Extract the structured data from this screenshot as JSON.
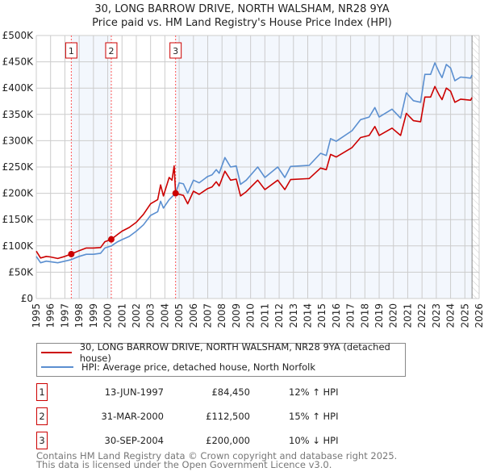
{
  "chart_data": {
    "type": "line",
    "title": "30, LONG BARROW DRIVE, NORTH WALSHAM, NR28 9YA",
    "subtitle": "Price paid vs. HM Land Registry's House Price Index (HPI)",
    "xlabel": "",
    "ylabel": "",
    "xlim": [
      1995,
      2026
    ],
    "ylim": [
      0,
      500000
    ],
    "grid": true,
    "x_ticks": [
      "1995",
      "1996",
      "1997",
      "1998",
      "1999",
      "2000",
      "2001",
      "2002",
      "2003",
      "2004",
      "2005",
      "2006",
      "2007",
      "2008",
      "2009",
      "2010",
      "2011",
      "2012",
      "2013",
      "2014",
      "2015",
      "2016",
      "2017",
      "2018",
      "2019",
      "2020",
      "2021",
      "2022",
      "2023",
      "2024",
      "2025",
      "2026"
    ],
    "y_ticks": [
      {
        "value": 0,
        "label": "£0"
      },
      {
        "value": 50000,
        "label": "£50K"
      },
      {
        "value": 100000,
        "label": "£100K"
      },
      {
        "value": 150000,
        "label": "£150K"
      },
      {
        "value": 200000,
        "label": "£200K"
      },
      {
        "value": 250000,
        "label": "£250K"
      },
      {
        "value": 300000,
        "label": "£300K"
      },
      {
        "value": 350000,
        "label": "£350K"
      },
      {
        "value": 400000,
        "label": "£400K"
      },
      {
        "value": 450000,
        "label": "£450K"
      },
      {
        "value": 500000,
        "label": "£500K"
      }
    ],
    "data_end": 2025.5,
    "legend_position": "below",
    "series": [
      {
        "name": "30, LONG BARROW DRIVE, NORTH WALSHAM, NR28 9YA (detached house)",
        "color": "#cc0000",
        "x": [
          1995.0,
          1995.3,
          1995.7,
          1996.0,
          1996.5,
          1997.0,
          1997.45,
          1998.0,
          1998.5,
          1999.0,
          1999.5,
          1999.8,
          2000.25,
          2000.7,
          2001.0,
          2001.5,
          2002.0,
          2002.5,
          2003.0,
          2003.5,
          2003.7,
          2003.9,
          2004.3,
          2004.5,
          2004.65,
          2004.75,
          2005.0,
          2005.3,
          2005.6,
          2006.0,
          2006.4,
          2007.0,
          2007.3,
          2007.6,
          2007.8,
          2008.2,
          2008.6,
          2009.0,
          2009.3,
          2009.7,
          2010.5,
          2011.0,
          2011.9,
          2012.4,
          2012.8,
          2014.1,
          2014.9,
          2015.3,
          2015.6,
          2016.0,
          2017.1,
          2017.7,
          2018.3,
          2018.7,
          2019.0,
          2019.9,
          2020.5,
          2020.9,
          2021.4,
          2021.9,
          2022.2,
          2022.6,
          2022.9,
          2023.2,
          2023.4,
          2023.7,
          2024.0,
          2024.3,
          2024.7,
          2025.4,
          2025.5
        ],
        "values": [
          90000,
          77000,
          80000,
          79000,
          76000,
          80000,
          84450,
          91000,
          96000,
          96000,
          97000,
          108000,
          112500,
          122000,
          128000,
          135000,
          145000,
          160000,
          180000,
          188000,
          216000,
          195000,
          230000,
          225000,
          252000,
          200000,
          198000,
          196000,
          180000,
          204000,
          198000,
          209000,
          212000,
          222000,
          214000,
          242000,
          225000,
          227000,
          195000,
          203000,
          225000,
          207000,
          225000,
          207000,
          226000,
          228000,
          248000,
          245000,
          274000,
          269000,
          287000,
          306000,
          310000,
          327000,
          310000,
          324000,
          310000,
          352000,
          338000,
          336000,
          383000,
          383000,
          403000,
          387000,
          378000,
          400000,
          394000,
          373000,
          379000,
          377000,
          382000
        ]
      },
      {
        "name": "HPI: Average price, detached house, North Norfolk",
        "color": "#5b8fd0",
        "x": [
          1995.0,
          1995.3,
          1995.7,
          1996.0,
          1996.5,
          1997.0,
          1997.45,
          1998.0,
          1998.5,
          1999.0,
          1999.5,
          1999.8,
          2000.25,
          2000.7,
          2001.0,
          2001.5,
          2002.0,
          2002.5,
          2003.0,
          2003.5,
          2003.7,
          2003.9,
          2004.3,
          2004.75,
          2005.0,
          2005.3,
          2005.6,
          2006.0,
          2006.4,
          2007.0,
          2007.3,
          2007.6,
          2007.8,
          2008.2,
          2008.6,
          2009.0,
          2009.3,
          2009.7,
          2010.5,
          2011.0,
          2011.9,
          2012.4,
          2012.8,
          2014.1,
          2014.9,
          2015.3,
          2015.6,
          2016.0,
          2017.1,
          2017.7,
          2018.3,
          2018.7,
          2019.0,
          2019.9,
          2020.5,
          2020.9,
          2021.4,
          2021.9,
          2022.2,
          2022.6,
          2022.9,
          2023.2,
          2023.4,
          2023.7,
          2024.0,
          2024.3,
          2024.7,
          2025.4,
          2025.5
        ],
        "values": [
          80000,
          68000,
          71000,
          70000,
          68000,
          71000,
          74000,
          80000,
          84000,
          84000,
          86000,
          96000,
          100000,
          108000,
          112000,
          118000,
          128000,
          140000,
          158000,
          165000,
          185000,
          172000,
          188000,
          200000,
          220000,
          218000,
          200000,
          225000,
          220000,
          232000,
          235000,
          245000,
          238000,
          268000,
          250000,
          252000,
          217000,
          225000,
          250000,
          230000,
          250000,
          230000,
          251000,
          253000,
          276000,
          272000,
          304000,
          299000,
          319000,
          340000,
          345000,
          363000,
          345000,
          360000,
          343000,
          391000,
          376000,
          373000,
          426000,
          426000,
          448000,
          430000,
          420000,
          445000,
          438000,
          414000,
          421000,
          419000,
          425000
        ]
      }
    ],
    "sales": [
      {
        "num": "1",
        "x": 1997.45,
        "price_value": 84450,
        "date": "13-JUN-1997",
        "price": "£84,450",
        "hpi": "12% ↑ HPI"
      },
      {
        "num": "2",
        "x": 2000.25,
        "price_value": 112500,
        "date": "31-MAR-2000",
        "price": "£112,500",
        "hpi": "15% ↑ HPI"
      },
      {
        "num": "3",
        "x": 2004.75,
        "price_value": 200000,
        "date": "30-SEP-2004",
        "price": "£200,000",
        "hpi": "10% ↓ HPI"
      }
    ]
  },
  "legend": {
    "property": "30, LONG BARROW DRIVE, NORTH WALSHAM, NR28 9YA (detached house)",
    "hpi": "HPI: Average price, detached house, North Norfolk"
  },
  "footer": {
    "line1": "Contains HM Land Registry data © Crown copyright and database right 2025.",
    "line2": "This data is licensed under the Open Government Licence v3.0."
  }
}
